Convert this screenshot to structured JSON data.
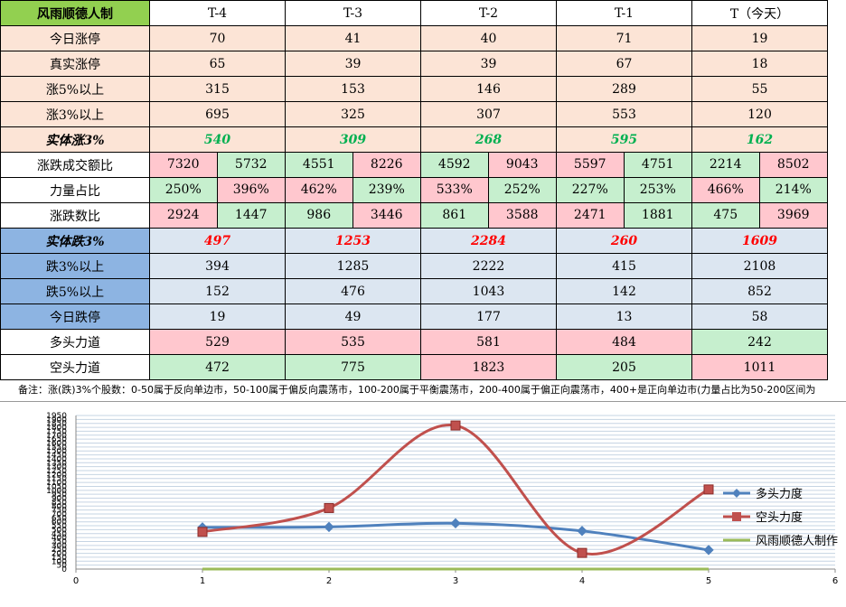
{
  "table": {
    "corner": "风雨顺德人制",
    "headers": [
      "T-4",
      "T-3",
      "T-2",
      "T-1",
      "T（今天）"
    ],
    "rows": {
      "zt": {
        "label": "今日涨停",
        "values": [
          "70",
          "41",
          "40",
          "71",
          "19"
        ]
      },
      "zszt": {
        "label": "真实涨停",
        "values": [
          "65",
          "39",
          "39",
          "67",
          "18"
        ]
      },
      "z5": {
        "label": "涨5%以上",
        "values": [
          "315",
          "153",
          "146",
          "289",
          "55"
        ]
      },
      "z3": {
        "label": "涨3%以上",
        "values": [
          "695",
          "325",
          "307",
          "553",
          "120"
        ]
      },
      "stz3": {
        "label": "实体涨3%",
        "values": [
          "540",
          "309",
          "268",
          "595",
          "162"
        ]
      },
      "cjeb": {
        "label": "涨跌成交额比",
        "values": [
          [
            "7320",
            "5732"
          ],
          [
            "4551",
            "8226"
          ],
          [
            "4592",
            "9043"
          ],
          [
            "5597",
            "4751"
          ],
          [
            "2214",
            "8502"
          ]
        ]
      },
      "llzb": {
        "label": "力量占比",
        "values": [
          [
            "250%",
            "396%"
          ],
          [
            "462%",
            "239%"
          ],
          [
            "533%",
            "252%"
          ],
          [
            "227%",
            "253%"
          ],
          [
            "466%",
            "214%"
          ]
        ]
      },
      "zdsb": {
        "label": "涨跌数比",
        "values": [
          [
            "2924",
            "1447"
          ],
          [
            "986",
            "3446"
          ],
          [
            "861",
            "3588"
          ],
          [
            "2471",
            "1881"
          ],
          [
            "475",
            "3969"
          ]
        ]
      },
      "std3": {
        "label": "实体跌3%",
        "values": [
          "497",
          "1253",
          "2284",
          "260",
          "1609"
        ]
      },
      "d3": {
        "label": "跌3%以上",
        "values": [
          "394",
          "1285",
          "2222",
          "415",
          "2108"
        ]
      },
      "d5": {
        "label": "跌5%以上",
        "values": [
          "152",
          "476",
          "1043",
          "142",
          "852"
        ]
      },
      "dt": {
        "label": "今日跌停",
        "values": [
          "19",
          "49",
          "177",
          "13",
          "58"
        ]
      },
      "dtld": {
        "label": "多头力道",
        "values": [
          "529",
          "535",
          "581",
          "484",
          "242"
        ]
      },
      "ktld": {
        "label": "空头力道",
        "values": [
          "472",
          "775",
          "1823",
          "205",
          "1011"
        ]
      }
    },
    "note": "备注：涨(跌)3%个股数：0-50属于反向单边市，50-100属于偏反向震荡市，100-200属于平衡震荡市，200-400属于偏正向震荡市，400+是正向单边市(力量占比为50-200区间为"
  },
  "chart_data": {
    "type": "line",
    "x": [
      1,
      2,
      3,
      4,
      5
    ],
    "xlim": [
      0,
      6
    ],
    "xticks": [
      "0",
      "1",
      "2",
      "3",
      "4",
      "5",
      "6"
    ],
    "ylim": [
      0,
      1950
    ],
    "yticks": [
      "0",
      "50",
      "100",
      "150",
      "200",
      "250",
      "300",
      "350",
      "400",
      "450",
      "500",
      "550",
      "600",
      "650",
      "700",
      "750",
      "800",
      "850",
      "900",
      "950",
      "1000",
      "1050",
      "1100",
      "1150",
      "1200",
      "1250",
      "1300",
      "1350",
      "1400",
      "1450",
      "1500",
      "1550",
      "1600",
      "1650",
      "1700",
      "1750",
      "1800",
      "1850",
      "1900",
      "1950"
    ],
    "grid": true,
    "legend": "right",
    "series": [
      {
        "name": "多头力度",
        "values": [
          529,
          535,
          581,
          484,
          242
        ],
        "color": "#4f81bd",
        "marker": "diamond"
      },
      {
        "name": "空头力度",
        "values": [
          472,
          775,
          1823,
          205,
          1011
        ],
        "color": "#c0504d",
        "marker": "square"
      },
      {
        "name": "风雨顺德人制作",
        "values": [
          0,
          0,
          0,
          0,
          0
        ],
        "color": "#9bbb59",
        "marker": "none"
      }
    ]
  }
}
